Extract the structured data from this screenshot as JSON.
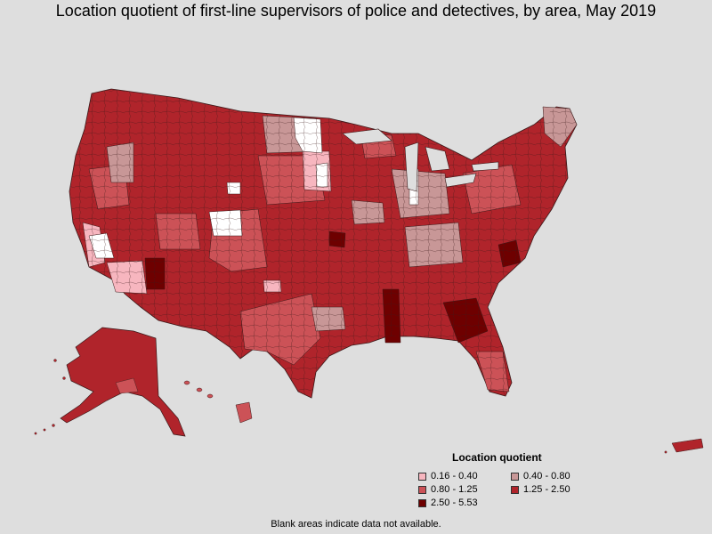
{
  "title": "Location quotient of first-line supervisors of police and detectives, by area, May 2019",
  "legend": {
    "title": "Location quotient",
    "items": [
      {
        "label": "0.16 - 0.40",
        "color": "#f7b6bf"
      },
      {
        "label": "0.40 - 0.80",
        "color": "#c89797"
      },
      {
        "label": "0.80 - 1.25",
        "color": "#cc5257"
      },
      {
        "label": "1.25 - 2.50",
        "color": "#b0242b"
      },
      {
        "label": "2.50 - 5.53",
        "color": "#6e0000"
      }
    ]
  },
  "footnote": "Blank areas indicate data not available.",
  "colors": {
    "background": "#dedede",
    "no_data": "#ffffff",
    "border": "#3a1a1a"
  }
}
